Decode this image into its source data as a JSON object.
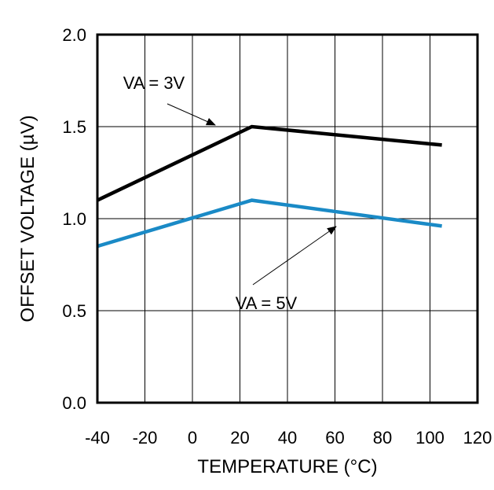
{
  "chart_data": {
    "type": "line",
    "title": "",
    "xlabel": "TEMPERATURE (°C)",
    "ylabel": "OFFSET VOLTAGE (µV)",
    "xlim": [
      -40,
      120
    ],
    "ylim": [
      0.0,
      2.0
    ],
    "x_ticks": [
      -40,
      -20,
      0,
      20,
      40,
      60,
      80,
      100,
      120
    ],
    "x_tick_labels": [
      "-40",
      "-20",
      "0",
      "20",
      "40",
      "60",
      "80",
      "100",
      "120"
    ],
    "y_ticks": [
      0.0,
      0.5,
      1.0,
      1.5,
      2.0
    ],
    "y_tick_labels": [
      "0.0",
      "0.5",
      "1.0",
      "1.5",
      "2.0"
    ],
    "grid": true,
    "series": [
      {
        "name": "VA = 3V",
        "color": "#000000",
        "x": [
          -40,
          25,
          105
        ],
        "y": [
          1.1,
          1.5,
          1.4
        ]
      },
      {
        "name": "VA = 5V",
        "color": "#1a8ac6",
        "x": [
          -40,
          25,
          105
        ],
        "y": [
          0.85,
          1.1,
          0.96
        ]
      }
    ],
    "annotations": [
      {
        "text": "VA = 3V",
        "target_series": "VA = 3V"
      },
      {
        "text": "VA = 5V",
        "target_series": "VA = 5V"
      }
    ]
  }
}
